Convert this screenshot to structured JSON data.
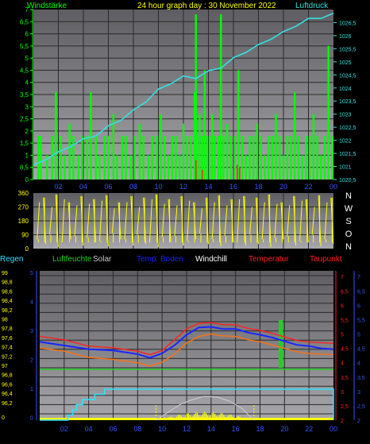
{
  "header": {
    "title": "24 hour graph day : 30 November 2022",
    "left_label": "Windstärke",
    "right_label": "Luftdruck"
  },
  "colors": {
    "plot_top": "#5e5e62",
    "plot_bottom": "#a7a7ab",
    "wind": "#00ff00",
    "gust_red": "#ff2020",
    "pressure": "#36e0e0",
    "direction": "#ffff00",
    "grid": "#2a2a2a",
    "temperature": "#ff2020",
    "dewpoint": "#ff7010",
    "soil_temp": "#1a24ff",
    "windchill": "#ffffff",
    "humidity": "#20d020",
    "solar": "#c8c8c8",
    "rain": "#30e0ff",
    "solar_fill": "#ffff00",
    "axis_blue": "#3355ff",
    "axis_red": "#ff2020",
    "axis_yellow": "#ffff00"
  },
  "x_ticks": [
    "02",
    "04",
    "06",
    "08",
    "10",
    "12",
    "14",
    "16",
    "18",
    "20",
    "22",
    "00"
  ],
  "panel1": {
    "left_ticks": [
      "7",
      "6,5",
      "6",
      "5,5",
      "5",
      "4,5",
      "4",
      "3,5",
      "3",
      "2,5",
      "2",
      "1,5",
      "1",
      "0,5",
      "0"
    ],
    "right_ticks": [
      "1026,5",
      "1026",
      "1025,5",
      "1025",
      "1024,5",
      "1024",
      "1023,5",
      "1023",
      "1022,5",
      "1022",
      "1021,5",
      "1021",
      "1020,5"
    ]
  },
  "panel2": {
    "left_ticks": [
      "360",
      "270",
      "180",
      "90",
      "0"
    ],
    "compass": [
      "N",
      "W",
      "S",
      "O",
      "N"
    ]
  },
  "legend": {
    "rain": "Regen",
    "humidity": "Luftfeuchte",
    "solar": "Solar",
    "soil": "Temp. Boden",
    "windchill": "Windchill",
    "temperature": "Temperatur",
    "dewpoint": "Taupunkt"
  },
  "panel3": {
    "hum_ticks": [
      "99",
      "98,8",
      "98,6",
      "98,4",
      "98,2",
      "98",
      "97,8",
      "97,6",
      "97,4",
      "97,2",
      "97",
      "96,8",
      "96,6",
      "96,4",
      "96,2",
      "0"
    ],
    "rain_ticks": [
      "5",
      "4",
      "3",
      "2",
      "1",
      "0"
    ],
    "temp_ticks": [
      "7",
      "6,5",
      "6",
      "5,5",
      "5",
      "4,5",
      "4",
      "3,5",
      "3",
      "2,5",
      "2"
    ],
    "soil_ticks": [
      "7",
      "6,5",
      "6",
      "5,5",
      "5",
      "4,5",
      "4",
      "3,5",
      "3",
      "2,5",
      "2"
    ]
  },
  "chart_data": [
    {
      "type": "line",
      "title": "24 hour graph day : 30 November 2022",
      "x_range_hours": [
        0,
        24
      ],
      "series": [
        {
          "name": "Windstärke",
          "kind": "bar",
          "points": [
            [
              0.4,
              1.8
            ],
            [
              0.6,
              1.8
            ],
            [
              1.1,
              1.0
            ],
            [
              1.5,
              1.8
            ],
            [
              1.8,
              3.6
            ],
            [
              2.2,
              1.8
            ],
            [
              2.5,
              1.0
            ],
            [
              2.9,
              2.3
            ],
            [
              3.2,
              1.8
            ],
            [
              3.6,
              1.0
            ],
            [
              3.9,
              1.8
            ],
            [
              4.3,
              1.8
            ],
            [
              4.6,
              3.6
            ],
            [
              5.0,
              1.8
            ],
            [
              5.3,
              1.0
            ],
            [
              5.7,
              1.8
            ],
            [
              6.0,
              1.8
            ],
            [
              6.4,
              2.7
            ],
            [
              6.7,
              1.0
            ],
            [
              7.1,
              1.8
            ],
            [
              7.4,
              1.8
            ],
            [
              7.8,
              1.0
            ],
            [
              8.1,
              1.8
            ],
            [
              8.5,
              2.3
            ],
            [
              8.8,
              1.8
            ],
            [
              9.2,
              1.0
            ],
            [
              9.5,
              1.8
            ],
            [
              9.9,
              1.8
            ],
            [
              10.2,
              2.7
            ],
            [
              10.5,
              1.8
            ],
            [
              10.8,
              1.0
            ],
            [
              11.1,
              1.8
            ],
            [
              11.4,
              1.8
            ],
            [
              11.7,
              1.0
            ],
            [
              12.0,
              2.3
            ],
            [
              12.3,
              1.8
            ],
            [
              12.6,
              1.8
            ],
            [
              12.9,
              3.6
            ],
            [
              13.0,
              6.8
            ],
            [
              13.1,
              1.8
            ],
            [
              13.3,
              2.7
            ],
            [
              13.5,
              1.8
            ],
            [
              13.7,
              4.5
            ],
            [
              13.9,
              1.8
            ],
            [
              14.1,
              1.8
            ],
            [
              14.3,
              2.7
            ],
            [
              14.5,
              1.8
            ],
            [
              14.8,
              1.8
            ],
            [
              15.0,
              6.8
            ],
            [
              15.2,
              1.8
            ],
            [
              15.5,
              2.3
            ],
            [
              15.8,
              1.8
            ],
            [
              16.1,
              1.8
            ],
            [
              16.4,
              4.5
            ],
            [
              16.7,
              1.8
            ],
            [
              17.0,
              1.0
            ],
            [
              17.3,
              1.8
            ],
            [
              17.6,
              1.8
            ],
            [
              17.9,
              2.3
            ],
            [
              18.2,
              1.8
            ],
            [
              18.5,
              1.0
            ],
            [
              18.8,
              1.8
            ],
            [
              19.1,
              1.8
            ],
            [
              19.4,
              2.7
            ],
            [
              19.7,
              1.8
            ],
            [
              20.0,
              1.0
            ],
            [
              20.3,
              1.8
            ],
            [
              20.6,
              1.8
            ],
            [
              20.9,
              3.6
            ],
            [
              21.2,
              1.8
            ],
            [
              21.5,
              1.0
            ],
            [
              21.8,
              1.8
            ],
            [
              22.1,
              1.8
            ],
            [
              22.4,
              2.7
            ],
            [
              22.7,
              1.8
            ],
            [
              23.0,
              1.0
            ],
            [
              23.3,
              1.8
            ],
            [
              23.6,
              5.5
            ],
            [
              23.9,
              1.8
            ]
          ]
        },
        {
          "name": "Luftdruck",
          "kind": "line",
          "points": [
            [
              0,
              1021.0
            ],
            [
              1,
              1021.3
            ],
            [
              2,
              1021.5
            ],
            [
              3,
              1021.8
            ],
            [
              4,
              1022.0
            ],
            [
              5,
              1022.2
            ],
            [
              6,
              1022.5
            ],
            [
              7,
              1022.8
            ],
            [
              8,
              1023.1
            ],
            [
              9,
              1023.5
            ],
            [
              10,
              1023.9
            ],
            [
              11,
              1024.2
            ],
            [
              12,
              1024.4
            ],
            [
              13,
              1024.4
            ],
            [
              14,
              1024.6
            ],
            [
              15,
              1024.8
            ],
            [
              16,
              1025.1
            ],
            [
              17,
              1025.4
            ],
            [
              18,
              1025.6
            ],
            [
              19,
              1025.9
            ],
            [
              20,
              1026.1
            ],
            [
              21,
              1026.4
            ],
            [
              22,
              1026.6
            ],
            [
              23,
              1026.7
            ],
            [
              24,
              1026.8
            ]
          ]
        }
      ]
    },
    {
      "type": "scatter",
      "title": "",
      "ylim": [
        0,
        360
      ],
      "x_range_hours": [
        0,
        24
      ],
      "series": [
        {
          "name": "",
          "points": [
            [
              0.3,
              60
            ],
            [
              0.8,
              330
            ],
            [
              1.3,
              90
            ],
            [
              1.8,
              350
            ],
            [
              2.3,
              40
            ],
            [
              2.8,
              300
            ],
            [
              3.3,
              80
            ],
            [
              3.8,
              340
            ],
            [
              4.3,
              70
            ],
            [
              4.8,
              320
            ],
            [
              5.3,
              50
            ],
            [
              5.8,
              345
            ],
            [
              6.3,
              100
            ],
            [
              6.8,
              300
            ],
            [
              7.3,
              60
            ],
            [
              7.8,
              340
            ],
            [
              8.3,
              90
            ],
            [
              8.8,
              330
            ],
            [
              9.3,
              40
            ],
            [
              9.8,
              350
            ],
            [
              10.3,
              70
            ],
            [
              10.8,
              320
            ],
            [
              11.3,
              80
            ],
            [
              11.8,
              340
            ],
            [
              12.3,
              50
            ],
            [
              12.8,
              300
            ],
            [
              13.3,
              100
            ],
            [
              13.8,
              330
            ],
            [
              14.3,
              60
            ],
            [
              14.8,
              345
            ],
            [
              15.3,
              80
            ],
            [
              15.8,
              320
            ],
            [
              16.3,
              40
            ],
            [
              16.8,
              340
            ],
            [
              17.3,
              90
            ],
            [
              17.8,
              330
            ],
            [
              18.3,
              60
            ],
            [
              18.8,
              350
            ],
            [
              19.3,
              70
            ],
            [
              19.8,
              300
            ],
            [
              20.3,
              80
            ],
            [
              20.8,
              340
            ],
            [
              21.3,
              50
            ],
            [
              21.8,
              320
            ],
            [
              22.3,
              90
            ],
            [
              22.8,
              345
            ],
            [
              23.3,
              60
            ],
            [
              23.8,
              330
            ]
          ]
        }
      ]
    },
    {
      "type": "line",
      "title": "",
      "x_range_hours": [
        0,
        24
      ],
      "series": [
        {
          "name": "Temperatur",
          "points": [
            [
              0,
              4.9
            ],
            [
              2,
              4.8
            ],
            [
              4,
              4.6
            ],
            [
              6,
              4.5
            ],
            [
              8,
              4.4
            ],
            [
              9,
              4.3
            ],
            [
              10,
              4.4
            ],
            [
              11,
              4.8
            ],
            [
              12,
              5.2
            ],
            [
              13,
              5.35
            ],
            [
              14,
              5.4
            ],
            [
              15,
              5.35
            ],
            [
              16,
              5.3
            ],
            [
              17,
              5.2
            ],
            [
              18,
              5.15
            ],
            [
              19,
              5.0
            ],
            [
              20,
              4.9
            ],
            [
              21,
              4.8
            ],
            [
              22,
              4.7
            ],
            [
              23,
              4.7
            ],
            [
              24,
              4.7
            ]
          ]
        },
        {
          "name": "Temp. Boden",
          "points": [
            [
              0,
              4.7
            ],
            [
              2,
              4.6
            ],
            [
              4,
              4.5
            ],
            [
              6,
              4.4
            ],
            [
              8,
              4.3
            ],
            [
              9,
              4.2
            ],
            [
              10,
              4.3
            ],
            [
              11,
              4.6
            ],
            [
              12,
              5.0
            ],
            [
              13,
              5.2
            ],
            [
              14,
              5.25
            ],
            [
              15,
              5.2
            ],
            [
              16,
              5.15
            ],
            [
              17,
              5.05
            ],
            [
              18,
              5.0
            ],
            [
              19,
              4.85
            ],
            [
              20,
              4.75
            ],
            [
              21,
              4.65
            ],
            [
              22,
              4.55
            ],
            [
              23,
              4.5
            ],
            [
              24,
              4.5
            ]
          ]
        },
        {
          "name": "Taupunkt",
          "points": [
            [
              0,
              4.5
            ],
            [
              2,
              4.4
            ],
            [
              4,
              4.2
            ],
            [
              6,
              4.1
            ],
            [
              8,
              4.0
            ],
            [
              9,
              3.9
            ],
            [
              10,
              4.0
            ],
            [
              11,
              4.3
            ],
            [
              12,
              4.7
            ],
            [
              13,
              4.9
            ],
            [
              14,
              5.0
            ],
            [
              15,
              4.95
            ],
            [
              16,
              4.9
            ],
            [
              17,
              4.8
            ],
            [
              18,
              4.75
            ],
            [
              19,
              4.6
            ],
            [
              20,
              4.5
            ],
            [
              21,
              4.4
            ],
            [
              22,
              4.3
            ],
            [
              23,
              4.3
            ],
            [
              24,
              4.3
            ]
          ]
        },
        {
          "name": "Luftfeuchte",
          "points": [
            [
              0,
              97.0
            ],
            [
              24,
              97.0
            ]
          ]
        },
        {
          "name": "Regen",
          "points": [
            [
              0,
              0
            ],
            [
              2,
              0
            ],
            [
              2.3,
              0.5
            ],
            [
              2.7,
              1
            ],
            [
              3.0,
              1.5
            ],
            [
              3.5,
              2
            ],
            [
              4.5,
              2.5
            ],
            [
              5.3,
              3
            ],
            [
              23.9,
              3
            ],
            [
              24,
              0
            ]
          ]
        },
        {
          "name": "Solar",
          "points": [
            [
              9.5,
              0
            ],
            [
              10.5,
              1
            ],
            [
              11.5,
              2
            ],
            [
              12.5,
              2.6
            ],
            [
              13.5,
              3
            ],
            [
              14.5,
              2.9
            ],
            [
              15.5,
              2.4
            ],
            [
              16.5,
              1.5
            ],
            [
              17.5,
              0
            ]
          ]
        }
      ]
    }
  ]
}
